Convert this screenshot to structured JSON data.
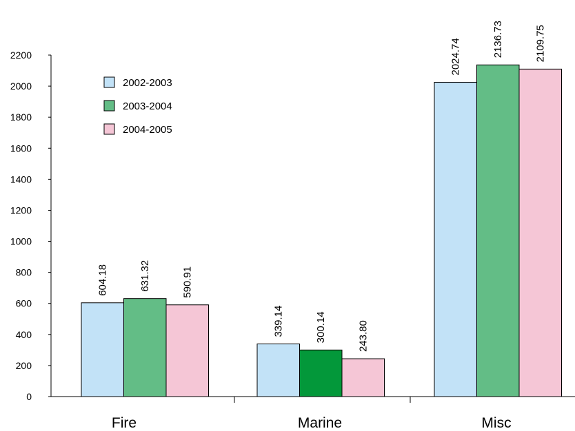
{
  "chart_data": {
    "type": "bar",
    "categories": [
      "Fire",
      "Marine",
      "Misc"
    ],
    "series": [
      {
        "name": "2002-2003",
        "values": [
          604.18,
          339.14,
          2024.74
        ],
        "labels": [
          "604.18",
          "339.14",
          "2024.74"
        ]
      },
      {
        "name": "2003-2004",
        "values": [
          631.32,
          300.14,
          2136.73
        ],
        "labels": [
          "631.32",
          "300.14",
          "2136.73"
        ]
      },
      {
        "name": "2004-2005",
        "values": [
          590.91,
          243.8,
          2109.75
        ],
        "labels": [
          "590.91",
          "243.80",
          "2109.75"
        ]
      }
    ],
    "ylim": [
      0,
      2200
    ],
    "yticks": [
      "0",
      "200",
      "400",
      "600",
      "800",
      "1000",
      "1200",
      "1400",
      "1600",
      "1800",
      "2000",
      "2200"
    ],
    "title": "",
    "xlabel": "",
    "ylabel": "",
    "grid": false,
    "legend_position": "top-left"
  },
  "colors": {
    "series_1": "#c2e2f7",
    "series_2": "#63bd86",
    "series_2_marine": "#03983a",
    "series_3": "#f5c6d6"
  }
}
